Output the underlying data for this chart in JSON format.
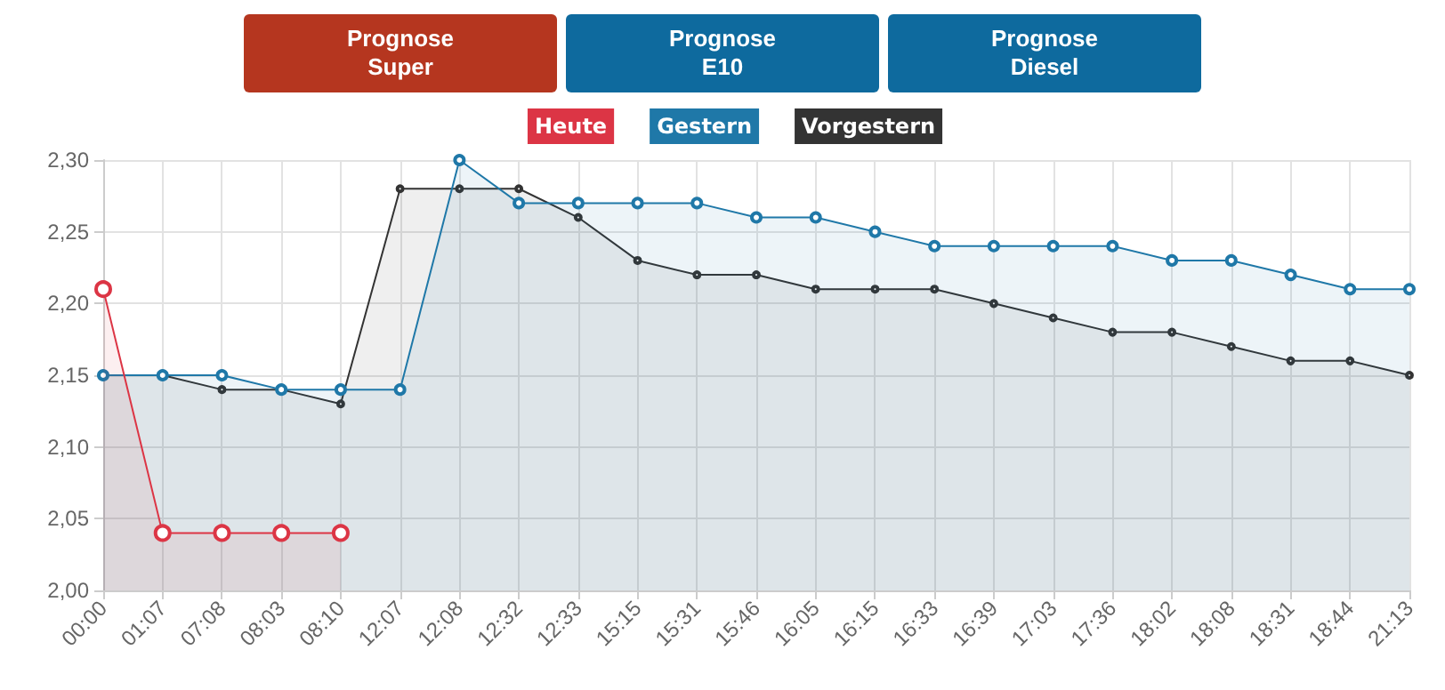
{
  "chart_data": {
    "type": "area",
    "annotations": [
      "Prognose Super",
      "Prognose E10",
      "Prognose Diesel"
    ],
    "categories": [
      "00:00",
      "01:07",
      "07:08",
      "08:03",
      "08:10",
      "12:07",
      "12:08",
      "12:32",
      "12:33",
      "15:15",
      "15:31",
      "15:46",
      "16:05",
      "16:15",
      "16:33",
      "16:39",
      "17:03",
      "17:36",
      "18:02",
      "18:08",
      "18:31",
      "18:44",
      "21:13"
    ],
    "series": [
      {
        "name": "Heute",
        "color": "#dc3545",
        "values": [
          2.21,
          2.04,
          2.04,
          2.04,
          2.04,
          null,
          null,
          null,
          null,
          null,
          null,
          null,
          null,
          null,
          null,
          null,
          null,
          null,
          null,
          null,
          null,
          null,
          null
        ]
      },
      {
        "name": "Gestern",
        "color": "#1f78a8",
        "values": [
          2.15,
          2.15,
          2.15,
          2.14,
          2.14,
          2.14,
          2.3,
          2.27,
          2.27,
          2.27,
          2.27,
          2.26,
          2.26,
          2.25,
          2.24,
          2.24,
          2.24,
          2.24,
          2.23,
          2.23,
          2.22,
          2.21,
          2.21
        ]
      },
      {
        "name": "Vorgestern",
        "color": "#333333",
        "values": [
          2.15,
          2.15,
          2.14,
          2.14,
          2.13,
          2.28,
          2.28,
          2.28,
          2.26,
          2.23,
          2.22,
          2.22,
          2.21,
          2.21,
          2.21,
          2.2,
          2.19,
          2.18,
          2.18,
          2.17,
          2.16,
          2.16,
          2.15
        ]
      }
    ],
    "ylim": [
      2.0,
      2.3
    ],
    "yticks": [
      {
        "value": 2.0,
        "label": "2,00"
      },
      {
        "value": 2.05,
        "label": "2,05"
      },
      {
        "value": 2.1,
        "label": "2,10"
      },
      {
        "value": 2.15,
        "label": "2,15"
      },
      {
        "value": 2.2,
        "label": "2,20"
      },
      {
        "value": 2.25,
        "label": "2,25"
      },
      {
        "value": 2.3,
        "label": "2,30"
      }
    ],
    "grid": true,
    "legend": "top",
    "marker": "circle",
    "line_style": "solid"
  }
}
